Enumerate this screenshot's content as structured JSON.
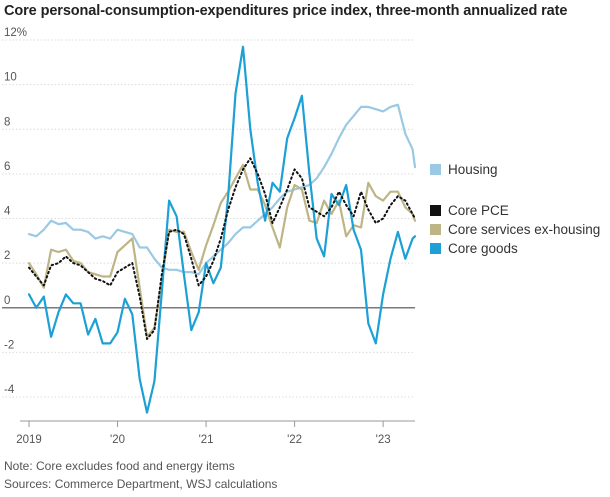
{
  "chart_data": {
    "type": "line",
    "title": "Core personal-consumption-expenditures price index, three-month annualized rate",
    "ylim": [
      -5,
      12.5
    ],
    "y_ticks": [
      12,
      10,
      8,
      6,
      4,
      2,
      0,
      -2,
      -4
    ],
    "y_tick_labels": [
      "12%",
      "10",
      "8",
      "6",
      "4",
      "2",
      "0",
      "-2",
      "-4"
    ],
    "x_range": [
      2019.0,
      2023.36
    ],
    "x_ticks": [
      2019,
      2020,
      2021,
      2022,
      2023
    ],
    "x_tick_labels": [
      "2019",
      "'20",
      "'21",
      "'22",
      "'23"
    ],
    "grid": true,
    "legend_position": "right",
    "series": [
      {
        "name": "Housing",
        "color": "#9bc9e4",
        "values": [
          [
            2019.0,
            3.3
          ],
          [
            2019.083,
            3.2
          ],
          [
            2019.167,
            3.5
          ],
          [
            2019.25,
            3.9
          ],
          [
            2019.333,
            3.75
          ],
          [
            2019.417,
            3.8
          ],
          [
            2019.5,
            3.5
          ],
          [
            2019.583,
            3.5
          ],
          [
            2019.667,
            3.4
          ],
          [
            2019.75,
            3.1
          ],
          [
            2019.833,
            3.2
          ],
          [
            2019.917,
            3.1
          ],
          [
            2020.0,
            3.5
          ],
          [
            2020.083,
            3.4
          ],
          [
            2020.167,
            3.3
          ],
          [
            2020.25,
            2.7
          ],
          [
            2020.333,
            2.7
          ],
          [
            2020.417,
            2.2
          ],
          [
            2020.5,
            1.8
          ],
          [
            2020.583,
            1.7
          ],
          [
            2020.667,
            1.7
          ],
          [
            2020.75,
            1.6
          ],
          [
            2020.833,
            1.6
          ],
          [
            2020.917,
            1.5
          ],
          [
            2021.0,
            2.0
          ],
          [
            2021.083,
            2.3
          ],
          [
            2021.167,
            2.6
          ],
          [
            2021.25,
            2.9
          ],
          [
            2021.333,
            3.3
          ],
          [
            2021.417,
            3.6
          ],
          [
            2021.5,
            3.6
          ],
          [
            2021.583,
            3.9
          ],
          [
            2021.667,
            4.2
          ],
          [
            2021.75,
            4.5
          ],
          [
            2021.833,
            4.9
          ],
          [
            2021.917,
            5.2
          ],
          [
            2022.0,
            5.3
          ],
          [
            2022.083,
            5.4
          ],
          [
            2022.167,
            5.5
          ],
          [
            2022.25,
            5.8
          ],
          [
            2022.333,
            6.3
          ],
          [
            2022.417,
            6.9
          ],
          [
            2022.5,
            7.6
          ],
          [
            2022.583,
            8.2
          ],
          [
            2022.667,
            8.6
          ],
          [
            2022.75,
            9.0
          ],
          [
            2022.833,
            9.0
          ],
          [
            2022.917,
            8.9
          ],
          [
            2023.0,
            8.8
          ],
          [
            2023.083,
            9.0
          ],
          [
            2023.167,
            9.1
          ],
          [
            2023.25,
            7.8
          ],
          [
            2023.333,
            7.1
          ],
          [
            2023.36,
            6.3
          ]
        ]
      },
      {
        "name": "Core PCE",
        "color": "#111111",
        "values": [
          [
            2019.0,
            1.8
          ],
          [
            2019.083,
            1.4
          ],
          [
            2019.167,
            1.0
          ],
          [
            2019.25,
            1.9
          ],
          [
            2019.333,
            2.0
          ],
          [
            2019.417,
            2.3
          ],
          [
            2019.5,
            2.0
          ],
          [
            2019.583,
            1.9
          ],
          [
            2019.667,
            1.6
          ],
          [
            2019.75,
            1.3
          ],
          [
            2019.833,
            1.2
          ],
          [
            2019.917,
            1.0
          ],
          [
            2020.0,
            1.6
          ],
          [
            2020.083,
            1.8
          ],
          [
            2020.167,
            2.0
          ],
          [
            2020.25,
            0.5
          ],
          [
            2020.333,
            -1.4
          ],
          [
            2020.417,
            -1.0
          ],
          [
            2020.5,
            1.5
          ],
          [
            2020.583,
            3.4
          ],
          [
            2020.667,
            3.5
          ],
          [
            2020.75,
            3.3
          ],
          [
            2020.833,
            2.2
          ],
          [
            2020.917,
            1.0
          ],
          [
            2021.0,
            1.4
          ],
          [
            2021.083,
            2.1
          ],
          [
            2021.167,
            3.1
          ],
          [
            2021.25,
            4.4
          ],
          [
            2021.333,
            5.4
          ],
          [
            2021.417,
            6.2
          ],
          [
            2021.5,
            6.7
          ],
          [
            2021.583,
            6.0
          ],
          [
            2021.667,
            5.1
          ],
          [
            2021.75,
            3.8
          ],
          [
            2021.833,
            4.5
          ],
          [
            2021.917,
            5.3
          ],
          [
            2022.0,
            6.2
          ],
          [
            2022.083,
            5.8
          ],
          [
            2022.167,
            4.5
          ],
          [
            2022.25,
            4.3
          ],
          [
            2022.333,
            4.1
          ],
          [
            2022.417,
            4.5
          ],
          [
            2022.5,
            5.2
          ],
          [
            2022.583,
            4.6
          ],
          [
            2022.667,
            4.1
          ],
          [
            2022.75,
            5.2
          ],
          [
            2022.833,
            4.4
          ],
          [
            2022.917,
            3.8
          ],
          [
            2023.0,
            4.0
          ],
          [
            2023.083,
            4.6
          ],
          [
            2023.167,
            5.0
          ],
          [
            2023.25,
            4.8
          ],
          [
            2023.333,
            4.2
          ],
          [
            2023.36,
            4.0
          ]
        ]
      },
      {
        "name": "Core services ex-housing",
        "color": "#bdb585",
        "values": [
          [
            2019.0,
            2.0
          ],
          [
            2019.083,
            1.5
          ],
          [
            2019.167,
            0.9
          ],
          [
            2019.25,
            2.6
          ],
          [
            2019.333,
            2.5
          ],
          [
            2019.417,
            2.6
          ],
          [
            2019.5,
            2.1
          ],
          [
            2019.583,
            2.0
          ],
          [
            2019.667,
            1.6
          ],
          [
            2019.75,
            1.5
          ],
          [
            2019.833,
            1.4
          ],
          [
            2019.917,
            1.4
          ],
          [
            2020.0,
            2.5
          ],
          [
            2020.083,
            2.8
          ],
          [
            2020.167,
            3.1
          ],
          [
            2020.25,
            0.9
          ],
          [
            2020.333,
            -1.3
          ],
          [
            2020.417,
            -0.9
          ],
          [
            2020.5,
            1.2
          ],
          [
            2020.583,
            3.5
          ],
          [
            2020.667,
            3.4
          ],
          [
            2020.75,
            3.4
          ],
          [
            2020.833,
            2.5
          ],
          [
            2020.917,
            1.7
          ],
          [
            2021.0,
            2.8
          ],
          [
            2021.083,
            3.7
          ],
          [
            2021.167,
            4.7
          ],
          [
            2021.25,
            5.2
          ],
          [
            2021.333,
            5.8
          ],
          [
            2021.417,
            6.4
          ],
          [
            2021.5,
            5.3
          ],
          [
            2021.583,
            5.3
          ],
          [
            2021.667,
            4.6
          ],
          [
            2021.75,
            3.6
          ],
          [
            2021.833,
            2.7
          ],
          [
            2021.917,
            4.5
          ],
          [
            2022.0,
            5.5
          ],
          [
            2022.083,
            5.3
          ],
          [
            2022.167,
            3.9
          ],
          [
            2022.25,
            3.8
          ],
          [
            2022.333,
            4.8
          ],
          [
            2022.417,
            4.2
          ],
          [
            2022.5,
            4.8
          ],
          [
            2022.583,
            3.2
          ],
          [
            2022.667,
            3.7
          ],
          [
            2022.75,
            3.6
          ],
          [
            2022.833,
            5.6
          ],
          [
            2022.917,
            5.0
          ],
          [
            2023.0,
            4.8
          ],
          [
            2023.083,
            5.2
          ],
          [
            2023.167,
            5.2
          ],
          [
            2023.25,
            4.5
          ],
          [
            2023.333,
            4.2
          ],
          [
            2023.36,
            3.9
          ]
        ]
      },
      {
        "name": "Core goods",
        "color": "#1ca0d6",
        "values": [
          [
            2019.0,
            0.6
          ],
          [
            2019.083,
            0.0
          ],
          [
            2019.167,
            0.5
          ],
          [
            2019.25,
            -1.3
          ],
          [
            2019.333,
            -0.2
          ],
          [
            2019.417,
            0.6
          ],
          [
            2019.5,
            0.2
          ],
          [
            2019.583,
            0.2
          ],
          [
            2019.667,
            -1.2
          ],
          [
            2019.75,
            -0.5
          ],
          [
            2019.833,
            -1.6
          ],
          [
            2019.917,
            -1.6
          ],
          [
            2020.0,
            -1.1
          ],
          [
            2020.083,
            0.4
          ],
          [
            2020.167,
            -0.3
          ],
          [
            2020.25,
            -3.2
          ],
          [
            2020.333,
            -4.7
          ],
          [
            2020.417,
            -3.3
          ],
          [
            2020.5,
            0.7
          ],
          [
            2020.583,
            4.8
          ],
          [
            2020.667,
            4.1
          ],
          [
            2020.75,
            1.5
          ],
          [
            2020.833,
            -1.0
          ],
          [
            2020.917,
            -0.2
          ],
          [
            2021.0,
            2.0
          ],
          [
            2021.083,
            1.1
          ],
          [
            2021.167,
            1.8
          ],
          [
            2021.25,
            5.0
          ],
          [
            2021.333,
            9.6
          ],
          [
            2021.417,
            11.7
          ],
          [
            2021.5,
            8.0
          ],
          [
            2021.583,
            5.6
          ],
          [
            2021.667,
            3.9
          ],
          [
            2021.75,
            5.6
          ],
          [
            2021.833,
            5.2
          ],
          [
            2021.917,
            7.6
          ],
          [
            2022.0,
            8.5
          ],
          [
            2022.083,
            9.5
          ],
          [
            2022.167,
            6.0
          ],
          [
            2022.25,
            3.1
          ],
          [
            2022.333,
            2.3
          ],
          [
            2022.417,
            5.1
          ],
          [
            2022.5,
            4.6
          ],
          [
            2022.583,
            5.5
          ],
          [
            2022.667,
            3.5
          ],
          [
            2022.75,
            2.6
          ],
          [
            2022.833,
            -0.7
          ],
          [
            2022.917,
            -1.6
          ],
          [
            2023.0,
            0.6
          ],
          [
            2023.083,
            2.2
          ],
          [
            2023.167,
            3.4
          ],
          [
            2023.25,
            2.2
          ],
          [
            2023.333,
            3.1
          ],
          [
            2023.36,
            3.2
          ]
        ]
      }
    ],
    "legend": [
      {
        "label": "Housing",
        "color": "#9bc9e4"
      },
      {
        "label": "Core PCE",
        "color": "#111111"
      },
      {
        "label": "Core services ex-housing",
        "color": "#bdb585"
      },
      {
        "label": "Core goods",
        "color": "#1ca0d6"
      }
    ]
  },
  "notes": {
    "note": "Note: Core excludes food and energy items",
    "sources": "Sources: Commerce Department, WSJ calculations"
  }
}
